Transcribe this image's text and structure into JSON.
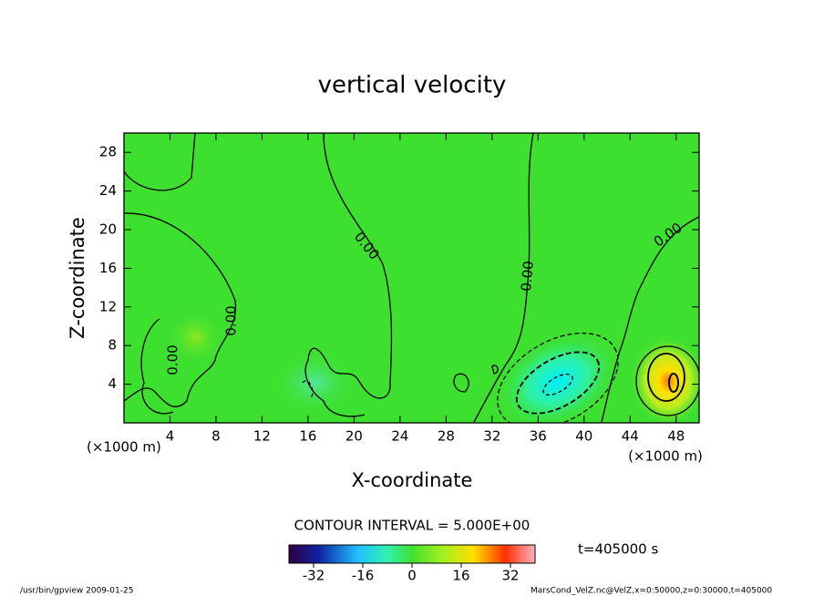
{
  "chart_data": {
    "type": "contour",
    "title": "vertical velocity",
    "x_label": "X-coordinate",
    "y_label": "Z-coordinate",
    "x_unit": "(×1000 m)",
    "y_unit": "(×1000 m)",
    "xlim": [
      0,
      50
    ],
    "xticks": [
      4,
      8,
      12,
      16,
      20,
      24,
      28,
      32,
      36,
      40,
      44,
      48
    ],
    "ylim": [
      0,
      30
    ],
    "yticks": [
      4,
      8,
      12,
      16,
      20,
      24,
      28
    ],
    "contour_labels": [
      "0.00",
      "0.00",
      "0.00",
      "0.00",
      "0.00"
    ],
    "contour_interval_label": "CONTOUR INTERVAL = 5.000E+00",
    "colorbar": {
      "lim": [
        -40,
        40
      ],
      "ticks": [
        -32,
        -16,
        0,
        16,
        32
      ]
    },
    "time_label": "t=405000 s",
    "footer_left": "/usr/bin/gpview  2009-01-25",
    "footer_right": "MarsCond_VelZ.nc@VelZ,x=0:50000,z=0:30000,t=405000"
  }
}
